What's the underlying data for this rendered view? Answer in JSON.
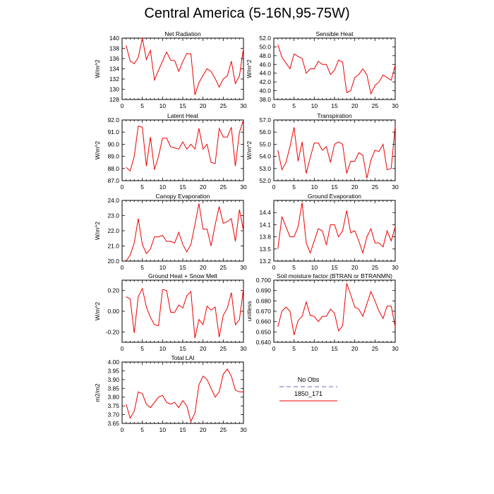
{
  "title": "Central America (5-16N,95-75W)",
  "legend": {
    "entries": [
      {
        "label": "No Obs",
        "color": "#9999dd",
        "dash": true
      },
      {
        "label": "1850_171",
        "color": "#ee0000",
        "dash": false
      }
    ]
  },
  "chart_data": [
    {
      "type": "line",
      "title": "Net Radiation",
      "ylabel": "W/m^2",
      "xlim": [
        0,
        30
      ],
      "ylim": [
        128,
        140
      ],
      "xticks": [
        0,
        5,
        10,
        15,
        20,
        25,
        30
      ],
      "yticks": [
        "128",
        "130",
        "132",
        "134",
        "136",
        "138",
        "140"
      ],
      "series": [
        {
          "name": "1850_171",
          "color": "#ee0000",
          "x": [
            1,
            2,
            3,
            4,
            5,
            6,
            7,
            8,
            9,
            10,
            11,
            12,
            13,
            14,
            15,
            16,
            17,
            18,
            19,
            20,
            21,
            22,
            23,
            24,
            25,
            26,
            27,
            28,
            29,
            30
          ],
          "values": [
            138.6,
            135.5,
            135.0,
            136.2,
            140.0,
            135.8,
            137.6,
            131.8,
            133.7,
            135.5,
            137.3,
            135.7,
            135.6,
            133.5,
            135.4,
            137.0,
            136.9,
            128.9,
            131.3,
            132.7,
            134.0,
            133.5,
            132.1,
            130.4,
            132.0,
            132.6,
            135.5,
            131.1,
            132.6,
            138.0
          ]
        }
      ]
    },
    {
      "type": "line",
      "title": "Sensible Heat",
      "ylabel": "W/m^2",
      "xlim": [
        0,
        30
      ],
      "ylim": [
        38,
        52
      ],
      "xticks": [
        0,
        5,
        10,
        15,
        20,
        25,
        30
      ],
      "yticks": [
        "38.0",
        "40.0",
        "42.0",
        "44.0",
        "46.0",
        "48.0",
        "50.0",
        "52.0"
      ],
      "series": [
        {
          "name": "1850_171",
          "color": "#ee0000",
          "x": [
            1,
            2,
            3,
            4,
            5,
            6,
            7,
            8,
            9,
            10,
            11,
            12,
            13,
            14,
            15,
            16,
            17,
            18,
            19,
            20,
            21,
            22,
            23,
            24,
            25,
            26,
            27,
            28,
            29,
            30
          ],
          "values": [
            50.5,
            47.6,
            46.3,
            45.0,
            48.4,
            47.8,
            47.4,
            44.0,
            45.0,
            45.0,
            46.7,
            46.0,
            46.0,
            43.7,
            44.7,
            47.0,
            46.5,
            39.6,
            40.0,
            43.0,
            43.7,
            45.0,
            43.6,
            39.3,
            41.2,
            42.0,
            43.6,
            43.0,
            42.4,
            45.8
          ]
        }
      ]
    },
    {
      "type": "line",
      "title": "Latent Heat",
      "ylabel": "W/m^2",
      "xlim": [
        0,
        30
      ],
      "ylim": [
        87,
        92
      ],
      "xticks": [
        0,
        5,
        10,
        15,
        20,
        25,
        30
      ],
      "yticks": [
        "87.0",
        "88.0",
        "89.0",
        "90.0",
        "91.0",
        "92.0"
      ],
      "series": [
        {
          "name": "1850_171",
          "color": "#ee0000",
          "x": [
            1,
            2,
            3,
            4,
            5,
            6,
            7,
            8,
            9,
            10,
            11,
            12,
            13,
            14,
            15,
            16,
            17,
            18,
            19,
            20,
            21,
            22,
            23,
            24,
            25,
            26,
            27,
            28,
            29,
            30
          ],
          "values": [
            88.1,
            87.8,
            89.0,
            91.5,
            91.4,
            88.2,
            90.6,
            87.9,
            89.0,
            90.5,
            90.5,
            89.8,
            89.7,
            89.6,
            90.2,
            89.6,
            90.0,
            89.6,
            91.3,
            89.6,
            90.0,
            88.5,
            88.4,
            91.3,
            90.6,
            90.6,
            91.4,
            88.2,
            91.0,
            92.0
          ]
        }
      ]
    },
    {
      "type": "line",
      "title": "Transpiration",
      "ylabel": "W/m^2",
      "xlim": [
        0,
        30
      ],
      "ylim": [
        52,
        57
      ],
      "xticks": [
        0,
        5,
        10,
        15,
        20,
        25,
        30
      ],
      "yticks": [
        "52.0",
        "53.0",
        "54.0",
        "55.0",
        "56.0",
        "57.0"
      ],
      "series": [
        {
          "name": "1850_171",
          "color": "#ee0000",
          "x": [
            1,
            2,
            3,
            4,
            5,
            6,
            7,
            8,
            9,
            10,
            11,
            12,
            13,
            14,
            15,
            16,
            17,
            18,
            19,
            20,
            21,
            22,
            23,
            24,
            25,
            26,
            27,
            28,
            29,
            30
          ],
          "values": [
            54.5,
            52.9,
            53.5,
            54.8,
            56.4,
            53.6,
            55.2,
            52.6,
            53.9,
            55.1,
            55.1,
            54.5,
            54.8,
            53.5,
            55.0,
            55.2,
            55.0,
            52.6,
            53.6,
            53.6,
            54.3,
            54.1,
            52.2,
            53.7,
            54.5,
            54.4,
            55.0,
            52.9,
            53.0,
            56.5
          ]
        }
      ]
    },
    {
      "type": "line",
      "title": "Canopy Evaporation",
      "ylabel": "W/m^2",
      "xlim": [
        0,
        30
      ],
      "ylim": [
        20,
        24
      ],
      "xticks": [
        0,
        5,
        10,
        15,
        20,
        25,
        30
      ],
      "yticks": [
        "20.0",
        "21.0",
        "22.0",
        "23.0",
        "24.0"
      ],
      "series": [
        {
          "name": "1850_171",
          "color": "#ee0000",
          "x": [
            1,
            2,
            3,
            4,
            5,
            6,
            7,
            8,
            9,
            10,
            11,
            12,
            13,
            14,
            15,
            16,
            17,
            18,
            19,
            20,
            21,
            22,
            23,
            24,
            25,
            26,
            27,
            28,
            29,
            30
          ],
          "values": [
            20.0,
            20.4,
            21.2,
            22.8,
            21.1,
            20.5,
            20.8,
            21.6,
            21.6,
            21.7,
            21.3,
            21.3,
            21.2,
            21.9,
            21.1,
            20.6,
            21.1,
            22.4,
            23.8,
            22.1,
            22.1,
            21.0,
            22.4,
            23.6,
            22.5,
            22.6,
            22.8,
            21.3,
            23.4,
            22.0
          ]
        }
      ]
    },
    {
      "type": "line",
      "title": "Ground Evaporation",
      "ylabel": "",
      "xlim": [
        0,
        30
      ],
      "ylim": [
        13.2,
        14.7
      ],
      "xticks": [
        0,
        5,
        10,
        15,
        20,
        25,
        30
      ],
      "yticks": [
        "13.2",
        "13.5",
        "13.8",
        "14.1",
        "14.4"
      ],
      "series": [
        {
          "name": "1850_171",
          "color": "#ee0000",
          "x": [
            1,
            2,
            3,
            4,
            5,
            6,
            7,
            8,
            9,
            10,
            11,
            12,
            13,
            14,
            15,
            16,
            17,
            18,
            19,
            20,
            21,
            22,
            23,
            24,
            25,
            26,
            27,
            28,
            29,
            30
          ],
          "values": [
            13.5,
            14.3,
            14.05,
            13.8,
            13.8,
            14.05,
            14.65,
            13.65,
            13.4,
            13.7,
            14.0,
            13.95,
            13.6,
            14.1,
            14.1,
            13.8,
            13.95,
            14.45,
            13.9,
            13.95,
            13.7,
            13.4,
            13.8,
            14.0,
            13.65,
            13.65,
            13.55,
            13.95,
            13.7,
            14.05
          ]
        }
      ]
    },
    {
      "type": "line",
      "title": "Ground Heat + Snow Melt",
      "ylabel": "W/m^2",
      "xlim": [
        0,
        30
      ],
      "ylim": [
        -0.3,
        0.3
      ],
      "xticks": [
        0,
        5,
        10,
        15,
        20,
        25,
        30
      ],
      "yticks": [
        "-0.20",
        "0.00",
        "0.20"
      ],
      "ytickvalues": [
        -0.2,
        0.0,
        0.2
      ],
      "series": [
        {
          "name": "1850_171",
          "color": "#ee0000",
          "x": [
            1,
            2,
            3,
            4,
            5,
            6,
            7,
            8,
            9,
            10,
            11,
            12,
            13,
            14,
            15,
            16,
            17,
            18,
            19,
            20,
            21,
            22,
            23,
            24,
            25,
            26,
            27,
            28,
            29,
            30
          ],
          "values": [
            0.14,
            0.12,
            -0.21,
            0.14,
            0.22,
            0.04,
            -0.06,
            -0.13,
            -0.14,
            0.21,
            0.2,
            -0.01,
            -0.01,
            0.06,
            0.03,
            0.15,
            0.19,
            -0.26,
            -0.08,
            -0.13,
            0.05,
            0.01,
            0.04,
            -0.25,
            -0.04,
            0.03,
            0.18,
            -0.13,
            -0.08,
            0.22
          ]
        }
      ]
    },
    {
      "type": "line",
      "title": "Soil moisture factor (BTRAN or BTRANMN)",
      "ylabel": "unitless",
      "xlim": [
        0,
        30
      ],
      "ylim": [
        0.64,
        0.7
      ],
      "xticks": [
        0,
        5,
        10,
        15,
        20,
        25,
        30
      ],
      "yticks": [
        "0.640",
        "0.650",
        "0.660",
        "0.670",
        "0.680",
        "0.690",
        "0.700"
      ],
      "series": [
        {
          "name": "1850_171",
          "color": "#ee0000",
          "x": [
            1,
            2,
            3,
            4,
            5,
            6,
            7,
            8,
            9,
            10,
            11,
            12,
            13,
            14,
            15,
            16,
            17,
            18,
            19,
            20,
            21,
            22,
            23,
            24,
            25,
            26,
            27,
            28,
            29,
            30
          ],
          "values": [
            0.655,
            0.67,
            0.674,
            0.67,
            0.647,
            0.661,
            0.665,
            0.679,
            0.666,
            0.665,
            0.66,
            0.665,
            0.665,
            0.672,
            0.668,
            0.651,
            0.656,
            0.697,
            0.686,
            0.674,
            0.672,
            0.665,
            0.677,
            0.689,
            0.68,
            0.67,
            0.663,
            0.675,
            0.675,
            0.655
          ]
        }
      ]
    },
    {
      "type": "line",
      "title": "Total LAI",
      "ylabel": "m2/m2",
      "xlim": [
        0,
        30
      ],
      "ylim": [
        3.65,
        4.0
      ],
      "xticks": [
        0,
        5,
        10,
        15,
        20,
        25,
        30
      ],
      "yticks": [
        "3.65",
        "3.70",
        "3.75",
        "3.80",
        "3.85",
        "3.90",
        "3.95",
        "4.00"
      ],
      "series": [
        {
          "name": "1850_171",
          "color": "#ee0000",
          "x": [
            1,
            2,
            3,
            4,
            5,
            6,
            7,
            8,
            9,
            10,
            11,
            12,
            13,
            14,
            15,
            16,
            17,
            18,
            19,
            20,
            21,
            22,
            23,
            24,
            25,
            26,
            27,
            28,
            29,
            30
          ],
          "values": [
            3.76,
            3.68,
            3.72,
            3.83,
            3.82,
            3.76,
            3.74,
            3.77,
            3.8,
            3.81,
            3.77,
            3.76,
            3.77,
            3.74,
            3.78,
            3.75,
            3.66,
            3.71,
            3.87,
            3.92,
            3.9,
            3.85,
            3.8,
            3.83,
            3.93,
            3.96,
            3.92,
            3.84,
            3.83,
            3.83
          ]
        }
      ]
    }
  ]
}
